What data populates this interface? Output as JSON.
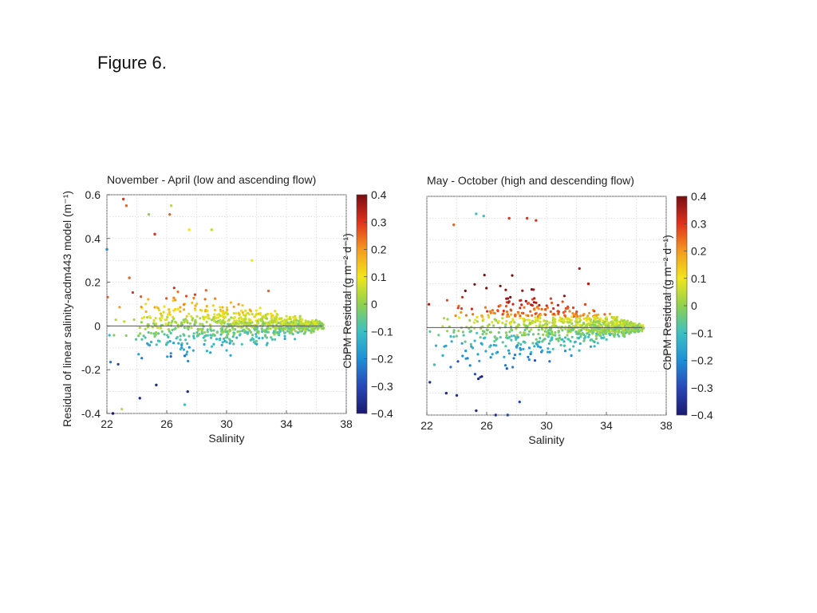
{
  "caption": "Figure 6.",
  "colormap": {
    "stops": [
      "#1a1a6e",
      "#2747b8",
      "#1f8fd6",
      "#3cc0c4",
      "#8fd14f",
      "#f2e61c",
      "#f39a1e",
      "#e0321c",
      "#7a0d12"
    ],
    "range": [
      -0.4,
      0.4
    ]
  },
  "chart_data": [
    {
      "type": "scatter",
      "title": "November - April (low and ascending flow)",
      "xlabel": "Salinity",
      "ylabel": "Residual of linear salinity-acdm443 model (m⁻¹)",
      "xlim": [
        22,
        38
      ],
      "ylim": [
        -0.4,
        0.6
      ],
      "xticks": [
        "22",
        "26",
        "30",
        "34",
        "38"
      ],
      "yticks": [
        "-0.4",
        "-0.2",
        "0",
        "0.2",
        "0.4",
        "0.6"
      ],
      "grid": true,
      "reference_line_y": 0,
      "colorbar": {
        "label": "CbPM Residual (g m⁻² d⁻¹)",
        "ticks": [
          "0.4",
          "0.3",
          "0.2",
          "0.1",
          "0",
          "−0.1",
          "−0.2",
          "−0.3",
          "−0.4"
        ]
      },
      "highlight_points": [
        {
          "x": 23.1,
          "y": 0.58,
          "c": 0.3
        },
        {
          "x": 23.3,
          "y": 0.55,
          "c": 0.25
        },
        {
          "x": 24.8,
          "y": 0.51,
          "c": 0.0
        },
        {
          "x": 26.3,
          "y": 0.55,
          "c": 0.05
        },
        {
          "x": 26.2,
          "y": 0.51,
          "c": 0.25
        },
        {
          "x": 25.2,
          "y": 0.42,
          "c": 0.3
        },
        {
          "x": 27.5,
          "y": 0.44,
          "c": 0.1
        },
        {
          "x": 29.0,
          "y": 0.44,
          "c": 0.05
        },
        {
          "x": 22.0,
          "y": 0.35,
          "c": -0.2
        },
        {
          "x": 23.5,
          "y": 0.22,
          "c": 0.25
        },
        {
          "x": 24.2,
          "y": -0.33,
          "c": -0.35
        },
        {
          "x": 25.3,
          "y": -0.27,
          "c": -0.35
        },
        {
          "x": 27.4,
          "y": -0.3,
          "c": -0.35
        },
        {
          "x": 22.4,
          "y": -0.4,
          "c": -0.4
        },
        {
          "x": 23.0,
          "y": -0.38,
          "c": 0.05
        },
        {
          "x": 27.2,
          "y": -0.36,
          "c": -0.1
        },
        {
          "x": 31.7,
          "y": 0.3,
          "c": 0.1
        },
        {
          "x": 32.8,
          "y": 0.16,
          "c": 0.25
        }
      ],
      "distribution": {
        "x_range": [
          22,
          36.5
        ],
        "y_spread_at_low_salinity": 0.25,
        "y_spread_at_high_salinity": 0.02,
        "y_bias": 0.04,
        "n_points": 900
      }
    },
    {
      "type": "scatter",
      "title": "May - October (high and descending flow)",
      "xlabel": "Salinity",
      "xlim": [
        22,
        38
      ],
      "ylim": [
        -0.4,
        0.6
      ],
      "xticks": [
        "22",
        "26",
        "30",
        "34",
        "38"
      ],
      "grid": true,
      "reference_line_y": 0,
      "colorbar": {
        "label": "CbPM Residual (g m⁻² d⁻¹)",
        "ticks": [
          "0.4",
          "0.3",
          "0.2",
          "0.1",
          "0",
          "−0.1",
          "−0.2",
          "−0.3",
          "−0.4"
        ]
      },
      "highlight_points": [
        {
          "x": 25.3,
          "y": 0.52,
          "c": -0.1
        },
        {
          "x": 25.8,
          "y": 0.51,
          "c": -0.1
        },
        {
          "x": 27.5,
          "y": 0.5,
          "c": 0.3
        },
        {
          "x": 28.7,
          "y": 0.5,
          "c": 0.3
        },
        {
          "x": 29.3,
          "y": 0.49,
          "c": 0.3
        },
        {
          "x": 23.8,
          "y": 0.47,
          "c": 0.25
        },
        {
          "x": 22.2,
          "y": -0.25,
          "c": -0.35
        },
        {
          "x": 23.3,
          "y": -0.3,
          "c": -0.35
        },
        {
          "x": 24.0,
          "y": -0.31,
          "c": -0.35
        },
        {
          "x": 25.3,
          "y": -0.38,
          "c": -0.35
        },
        {
          "x": 26.6,
          "y": -0.4,
          "c": -0.35
        },
        {
          "x": 27.4,
          "y": -0.4,
          "c": -0.3
        },
        {
          "x": 28.2,
          "y": -0.34,
          "c": -0.3
        },
        {
          "x": 32.2,
          "y": 0.27,
          "c": 0.35
        },
        {
          "x": 32.8,
          "y": 0.2,
          "c": 0.35
        },
        {
          "x": 22.5,
          "y": -0.17,
          "c": -0.1
        }
      ],
      "distribution": {
        "x_range": [
          22,
          36.5
        ],
        "y_spread_at_low_salinity": 0.32,
        "y_spread_at_high_salinity": 0.02,
        "y_bias": 0.06,
        "n_points": 1000
      }
    }
  ]
}
